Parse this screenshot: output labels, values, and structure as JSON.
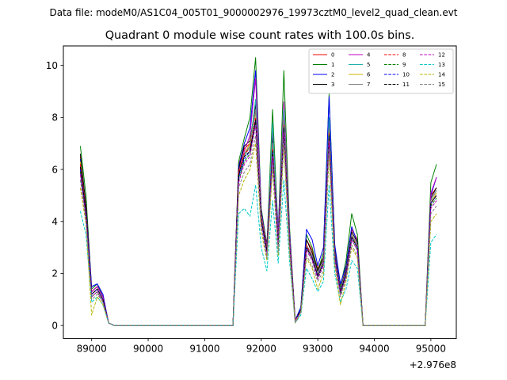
{
  "suptitle": "Data file: modeM0/AS1C04_005T01_9000002976_19973cztM0_level2_quad_clean.evt",
  "chart_data": {
    "type": "line",
    "title": "Quadrant 0 module wise count rates with 100.0s bins.",
    "xlabel": "",
    "ylabel": "",
    "x_offset_label": "+2.976e8",
    "x_offset": 297600000,
    "xlim": [
      88500,
      95450
    ],
    "ylim": [
      -0.5,
      10.75
    ],
    "xticks": [
      89000,
      90000,
      91000,
      92000,
      93000,
      94000,
      95000
    ],
    "xtick_labels": [
      "89000",
      "90000",
      "91000",
      "92000",
      "93000",
      "94000",
      "95000"
    ],
    "yticks": [
      0,
      2,
      4,
      6,
      8,
      10
    ],
    "ytick_labels": [
      "0",
      "2",
      "4",
      "6",
      "8",
      "10"
    ],
    "grid": false,
    "legend": {
      "placement": "top-right",
      "columns": 4
    },
    "x": [
      88800,
      88900,
      89000,
      89100,
      89200,
      89300,
      89400,
      89500,
      89600,
      89700,
      89800,
      89900,
      90000,
      90100,
      90200,
      90300,
      90400,
      90500,
      90600,
      90700,
      90800,
      90900,
      91000,
      91100,
      91200,
      91300,
      91400,
      91500,
      91600,
      91700,
      91800,
      91900,
      92000,
      92100,
      92200,
      92300,
      92400,
      92500,
      92600,
      92700,
      92800,
      92900,
      93000,
      93100,
      93200,
      93300,
      93400,
      93500,
      93600,
      93700,
      93800,
      93900,
      94000,
      94100,
      94200,
      94300,
      94400,
      94500,
      94600,
      94700,
      94800,
      94900,
      95000,
      95100
    ],
    "series": [
      {
        "name": "0",
        "color": "#ff0000",
        "dash": "solid",
        "values": [
          6.5,
          4.5,
          1.3,
          1.5,
          1.1,
          0.1,
          0,
          0,
          0,
          0,
          0,
          0,
          0,
          0,
          0,
          0,
          0,
          0,
          0,
          0,
          0,
          0,
          0,
          0,
          0,
          0,
          0,
          0,
          6.2,
          6.8,
          7.0,
          8.4,
          4.3,
          3.0,
          7.2,
          3.3,
          8.1,
          3.4,
          0.2,
          0.6,
          3.3,
          2.9,
          2.2,
          2.6,
          7.8,
          2.9,
          1.4,
          2.2,
          3.7,
          3.3,
          0,
          0,
          0,
          0,
          0,
          0,
          0,
          0,
          0,
          0,
          0,
          0,
          5.0,
          5.3
        ]
      },
      {
        "name": "1",
        "color": "#008000",
        "dash": "solid",
        "values": [
          6.9,
          5.0,
          1.4,
          1.6,
          1.1,
          0.1,
          0,
          0,
          0,
          0,
          0,
          0,
          0,
          0,
          0,
          0,
          0,
          0,
          0,
          0,
          0,
          0,
          0,
          0,
          0,
          0,
          0,
          0,
          6.3,
          7.2,
          8.0,
          10.3,
          4.5,
          3.1,
          8.3,
          3.6,
          9.8,
          3.8,
          0.2,
          0.7,
          3.5,
          3.0,
          2.1,
          2.8,
          8.9,
          3.1,
          1.5,
          2.5,
          4.3,
          3.5,
          0,
          0,
          0,
          0,
          0,
          0,
          0,
          0,
          0,
          0,
          0,
          0,
          5.5,
          6.2
        ]
      },
      {
        "name": "2",
        "color": "#0000ff",
        "dash": "solid",
        "values": [
          6.4,
          4.6,
          1.5,
          1.6,
          1.2,
          0.1,
          0,
          0,
          0,
          0,
          0,
          0,
          0,
          0,
          0,
          0,
          0,
          0,
          0,
          0,
          0,
          0,
          0,
          0,
          0,
          0,
          0,
          0,
          6.1,
          7.0,
          7.6,
          9.8,
          4.4,
          3.0,
          7.5,
          3.6,
          8.5,
          3.6,
          0.2,
          0.7,
          3.7,
          3.3,
          2.3,
          3.0,
          8.8,
          3.1,
          1.6,
          2.3,
          3.8,
          3.2,
          0,
          0,
          0,
          0,
          0,
          0,
          0,
          0,
          0,
          0,
          0,
          0,
          5.0,
          5.7
        ]
      },
      {
        "name": "3",
        "color": "#000000",
        "dash": "solid",
        "values": [
          6.6,
          4.6,
          1.3,
          1.5,
          1.1,
          0.1,
          0,
          0,
          0,
          0,
          0,
          0,
          0,
          0,
          0,
          0,
          0,
          0,
          0,
          0,
          0,
          0,
          0,
          0,
          0,
          0,
          0,
          0,
          6.0,
          6.9,
          7.1,
          8.5,
          4.3,
          3.0,
          7.2,
          3.3,
          8.2,
          3.4,
          0.2,
          0.6,
          3.3,
          2.8,
          2.1,
          2.6,
          7.9,
          2.9,
          1.4,
          2.2,
          3.6,
          3.2,
          0,
          0,
          0,
          0,
          0,
          0,
          0,
          0,
          0,
          0,
          0,
          0,
          4.9,
          5.3
        ]
      },
      {
        "name": "4",
        "color": "#c000c0",
        "dash": "solid",
        "values": [
          6.2,
          4.4,
          1.3,
          1.5,
          1.1,
          0.1,
          0,
          0,
          0,
          0,
          0,
          0,
          0,
          0,
          0,
          0,
          0,
          0,
          0,
          0,
          0,
          0,
          0,
          0,
          0,
          0,
          0,
          0,
          5.9,
          6.7,
          7.3,
          9.5,
          4.3,
          3.0,
          7.6,
          3.4,
          8.6,
          3.5,
          0.2,
          0.6,
          3.1,
          2.7,
          2.0,
          2.5,
          7.7,
          2.8,
          1.3,
          2.1,
          3.5,
          3.1,
          0,
          0,
          0,
          0,
          0,
          0,
          0,
          0,
          0,
          0,
          0,
          0,
          5.1,
          5.7
        ]
      },
      {
        "name": "5",
        "color": "#20b2aa",
        "dash": "solid",
        "values": [
          6.0,
          4.2,
          1.2,
          1.4,
          1.0,
          0.1,
          0,
          0,
          0,
          0,
          0,
          0,
          0,
          0,
          0,
          0,
          0,
          0,
          0,
          0,
          0,
          0,
          0,
          0,
          0,
          0,
          0,
          0,
          5.7,
          6.5,
          6.9,
          8.7,
          4.1,
          2.8,
          7.8,
          3.1,
          8.3,
          3.2,
          0.2,
          0.6,
          3.0,
          2.6,
          1.9,
          2.4,
          8.0,
          2.7,
          1.3,
          2.0,
          3.4,
          3.0,
          0,
          0,
          0,
          0,
          0,
          0,
          0,
          0,
          0,
          0,
          0,
          0,
          4.8,
          5.2
        ]
      },
      {
        "name": "6",
        "color": "#c8b400",
        "dash": "solid",
        "values": [
          6.3,
          4.3,
          1.2,
          1.4,
          1.0,
          0.1,
          0,
          0,
          0,
          0,
          0,
          0,
          0,
          0,
          0,
          0,
          0,
          0,
          0,
          0,
          0,
          0,
          0,
          0,
          0,
          0,
          0,
          0,
          5.8,
          6.6,
          7.0,
          8.2,
          4.2,
          2.9,
          7.0,
          3.2,
          7.9,
          3.3,
          0.2,
          0.6,
          3.0,
          2.6,
          1.9,
          2.4,
          7.5,
          2.7,
          1.3,
          2.0,
          3.5,
          3.0,
          0,
          0,
          0,
          0,
          0,
          0,
          0,
          0,
          0,
          0,
          0,
          0,
          4.7,
          5.1
        ]
      },
      {
        "name": "7",
        "color": "#808080",
        "dash": "solid",
        "values": [
          6.1,
          4.3,
          1.2,
          1.4,
          1.0,
          0.1,
          0,
          0,
          0,
          0,
          0,
          0,
          0,
          0,
          0,
          0,
          0,
          0,
          0,
          0,
          0,
          0,
          0,
          0,
          0,
          0,
          0,
          0,
          5.8,
          6.6,
          6.9,
          8.3,
          4.1,
          2.9,
          7.0,
          3.2,
          7.9,
          3.3,
          0.2,
          0.6,
          3.1,
          2.7,
          2.0,
          2.5,
          7.6,
          2.8,
          1.4,
          2.1,
          3.5,
          3.1,
          0,
          0,
          0,
          0,
          0,
          0,
          0,
          0,
          0,
          0,
          0,
          0,
          4.8,
          5.2
        ]
      },
      {
        "name": "8",
        "color": "#ff0000",
        "dash": "dashed",
        "values": [
          6.2,
          4.4,
          1.2,
          1.4,
          1.0,
          0.1,
          0,
          0,
          0,
          0,
          0,
          0,
          0,
          0,
          0,
          0,
          0,
          0,
          0,
          0,
          0,
          0,
          0,
          0,
          0,
          0,
          0,
          0,
          5.9,
          6.6,
          6.8,
          8.0,
          4.1,
          2.9,
          6.8,
          3.1,
          7.7,
          3.2,
          0.2,
          0.6,
          3.1,
          2.6,
          1.9,
          2.4,
          7.4,
          2.7,
          1.3,
          2.0,
          3.4,
          3.0,
          0,
          0,
          0,
          0,
          0,
          0,
          0,
          0,
          0,
          0,
          0,
          0,
          4.7,
          5.0
        ]
      },
      {
        "name": "9",
        "color": "#008000",
        "dash": "dashed",
        "values": [
          5.9,
          4.2,
          1.1,
          1.3,
          0.9,
          0.1,
          0,
          0,
          0,
          0,
          0,
          0,
          0,
          0,
          0,
          0,
          0,
          0,
          0,
          0,
          0,
          0,
          0,
          0,
          0,
          0,
          0,
          0,
          5.6,
          6.3,
          6.6,
          7.8,
          4.0,
          2.8,
          6.6,
          3.0,
          7.5,
          3.1,
          0.2,
          0.5,
          2.9,
          2.5,
          1.8,
          2.3,
          7.2,
          2.6,
          1.2,
          1.9,
          3.3,
          2.9,
          0,
          0,
          0,
          0,
          0,
          0,
          0,
          0,
          0,
          0,
          0,
          0,
          4.6,
          4.9
        ]
      },
      {
        "name": "10",
        "color": "#0000ff",
        "dash": "dashed",
        "values": [
          6.0,
          4.3,
          1.2,
          1.4,
          1.0,
          0.1,
          0,
          0,
          0,
          0,
          0,
          0,
          0,
          0,
          0,
          0,
          0,
          0,
          0,
          0,
          0,
          0,
          0,
          0,
          0,
          0,
          0,
          0,
          5.7,
          6.4,
          6.7,
          7.9,
          4.0,
          2.8,
          6.7,
          3.1,
          7.6,
          3.2,
          0.2,
          0.6,
          3.0,
          2.6,
          1.9,
          2.4,
          7.3,
          2.7,
          1.3,
          2.0,
          3.4,
          3.0,
          0,
          0,
          0,
          0,
          0,
          0,
          0,
          0,
          0,
          0,
          0,
          0,
          4.7,
          5.0
        ]
      },
      {
        "name": "11",
        "color": "#000000",
        "dash": "dashed",
        "values": [
          6.1,
          4.3,
          1.2,
          1.4,
          1.0,
          0.1,
          0,
          0,
          0,
          0,
          0,
          0,
          0,
          0,
          0,
          0,
          0,
          0,
          0,
          0,
          0,
          0,
          0,
          0,
          0,
          0,
          0,
          0,
          5.8,
          6.5,
          6.7,
          7.9,
          4.1,
          2.9,
          6.7,
          3.1,
          7.6,
          3.2,
          0.2,
          0.6,
          3.0,
          2.6,
          1.9,
          2.4,
          7.3,
          2.7,
          1.3,
          2.0,
          3.4,
          3.0,
          0,
          0,
          0,
          0,
          0,
          0,
          0,
          0,
          0,
          0,
          0,
          0,
          4.7,
          5.0
        ]
      },
      {
        "name": "12",
        "color": "#c000c0",
        "dash": "dashed",
        "values": [
          5.8,
          4.1,
          1.1,
          1.3,
          0.9,
          0.1,
          0,
          0,
          0,
          0,
          0,
          0,
          0,
          0,
          0,
          0,
          0,
          0,
          0,
          0,
          0,
          0,
          0,
          0,
          0,
          0,
          0,
          0,
          5.5,
          6.2,
          6.5,
          7.7,
          3.9,
          2.7,
          6.5,
          3.0,
          7.4,
          3.1,
          0.2,
          0.5,
          2.9,
          2.5,
          1.8,
          2.3,
          7.1,
          2.6,
          1.2,
          1.9,
          3.3,
          2.9,
          0,
          0,
          0,
          0,
          0,
          0,
          0,
          0,
          0,
          0,
          0,
          0,
          4.5,
          4.8
        ]
      },
      {
        "name": "13",
        "color": "#00c8c8",
        "dash": "dashed",
        "values": [
          4.4,
          3.5,
          0.9,
          1.1,
          0.8,
          0.1,
          0,
          0,
          0,
          0,
          0,
          0,
          0,
          0,
          0,
          0,
          0,
          0,
          0,
          0,
          0,
          0,
          0,
          0,
          0,
          0,
          0,
          0,
          4.3,
          4.5,
          4.2,
          5.4,
          3.0,
          2.1,
          4.8,
          2.4,
          5.6,
          2.5,
          0.1,
          0.4,
          2.2,
          1.8,
          1.3,
          1.7,
          5.4,
          2.0,
          0.9,
          1.4,
          2.5,
          2.2,
          0,
          0,
          0,
          0,
          0,
          0,
          0,
          0,
          0,
          0,
          0,
          0,
          3.2,
          3.5
        ]
      },
      {
        "name": "14",
        "color": "#b4b400",
        "dash": "dashed",
        "values": [
          5.3,
          3.9,
          0.4,
          1.1,
          0.8,
          0.1,
          0,
          0,
          0,
          0,
          0,
          0,
          0,
          0,
          0,
          0,
          0,
          0,
          0,
          0,
          0,
          0,
          0,
          0,
          0,
          0,
          0,
          0,
          5.0,
          5.6,
          6.0,
          7.0,
          3.6,
          2.5,
          6.0,
          2.7,
          6.9,
          2.8,
          0.1,
          0.5,
          2.6,
          2.2,
          1.4,
          2.0,
          6.5,
          2.3,
          0.8,
          1.7,
          3.0,
          2.6,
          0,
          0,
          0,
          0,
          0,
          0,
          0,
          0,
          0,
          0,
          0,
          0,
          4.0,
          4.3
        ]
      },
      {
        "name": "15",
        "color": "#808080",
        "dash": "dashed",
        "values": [
          5.6,
          4.0,
          1.0,
          1.2,
          0.9,
          0.1,
          0,
          0,
          0,
          0,
          0,
          0,
          0,
          0,
          0,
          0,
          0,
          0,
          0,
          0,
          0,
          0,
          0,
          0,
          0,
          0,
          0,
          0,
          5.3,
          5.9,
          6.2,
          7.3,
          3.8,
          2.6,
          6.2,
          2.8,
          7.1,
          2.9,
          0.1,
          0.5,
          2.7,
          2.3,
          1.7,
          2.1,
          6.8,
          2.4,
          1.1,
          1.8,
          3.1,
          2.7,
          0,
          0,
          0,
          0,
          0,
          0,
          0,
          0,
          0,
          0,
          0,
          0,
          4.3,
          4.6
        ]
      }
    ]
  }
}
